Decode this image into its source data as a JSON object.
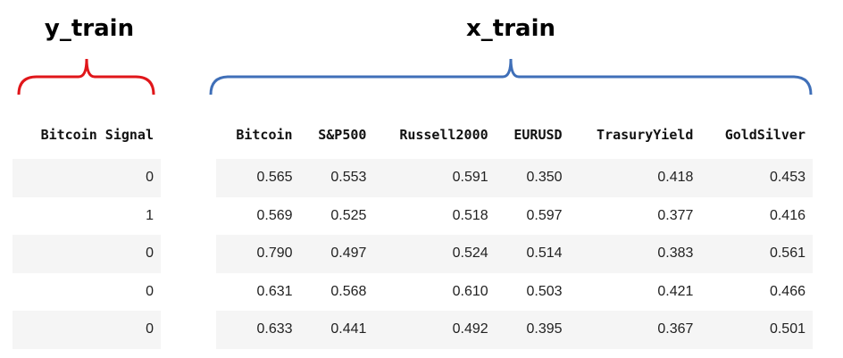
{
  "labels": {
    "y_train": "y_train",
    "x_train": "x_train"
  },
  "colors": {
    "y_brace": "#e0161a",
    "x_brace": "#3f6fb8"
  },
  "y_table": {
    "header": "Bitcoin Signal",
    "rows": [
      "0",
      "1",
      "0",
      "0",
      "0"
    ]
  },
  "x_table": {
    "headers": [
      "Bitcoin",
      "S&P500",
      "Russell2000",
      "EURUSD",
      "TrasuryYield",
      "GoldSilver"
    ],
    "rows": [
      [
        "0.565",
        "0.553",
        "0.591",
        "0.350",
        "0.418",
        "0.453"
      ],
      [
        "0.569",
        "0.525",
        "0.518",
        "0.597",
        "0.377",
        "0.416"
      ],
      [
        "0.790",
        "0.497",
        "0.524",
        "0.514",
        "0.383",
        "0.561"
      ],
      [
        "0.631",
        "0.568",
        "0.610",
        "0.503",
        "0.421",
        "0.466"
      ],
      [
        "0.633",
        "0.441",
        "0.492",
        "0.395",
        "0.367",
        "0.501"
      ]
    ]
  }
}
